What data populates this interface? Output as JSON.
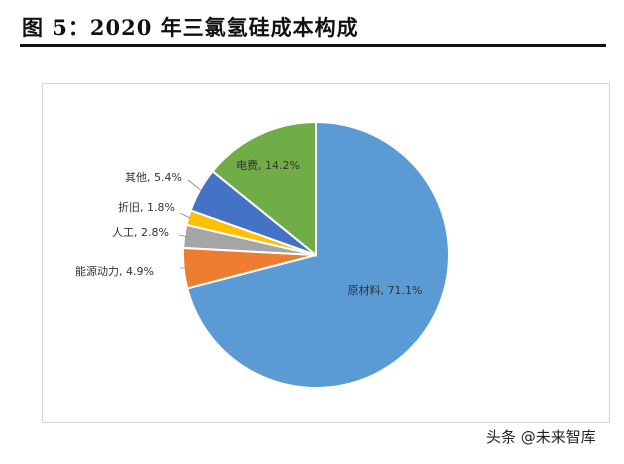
{
  "figure": {
    "title": "图  5：2020 年三氯氢硅成本构成"
  },
  "watermark": "头条 @未来智库",
  "chart_data": {
    "type": "pie",
    "title": "",
    "start_angle_deg": 0,
    "direction": "clockwise",
    "slices": [
      {
        "label": "原材料",
        "value": 71.1,
        "text": "原材料, 71.1%",
        "color": "#5b9bd5"
      },
      {
        "label": "能源动力",
        "value": 4.9,
        "text": "能源动力, 4.9%",
        "color": "#ed7d31"
      },
      {
        "label": "人工",
        "value": 2.8,
        "text": "人工, 2.8%",
        "color": "#a5a5a5"
      },
      {
        "label": "折旧",
        "value": 1.8,
        "text": "折旧, 1.8%",
        "color": "#ffc000"
      },
      {
        "label": "其他",
        "value": 5.4,
        "text": "其他, 5.4%",
        "color": "#4472c4"
      },
      {
        "label": "电费",
        "value": 14.2,
        "text": "电费, 14.2%",
        "color": "#70ad47"
      }
    ]
  }
}
